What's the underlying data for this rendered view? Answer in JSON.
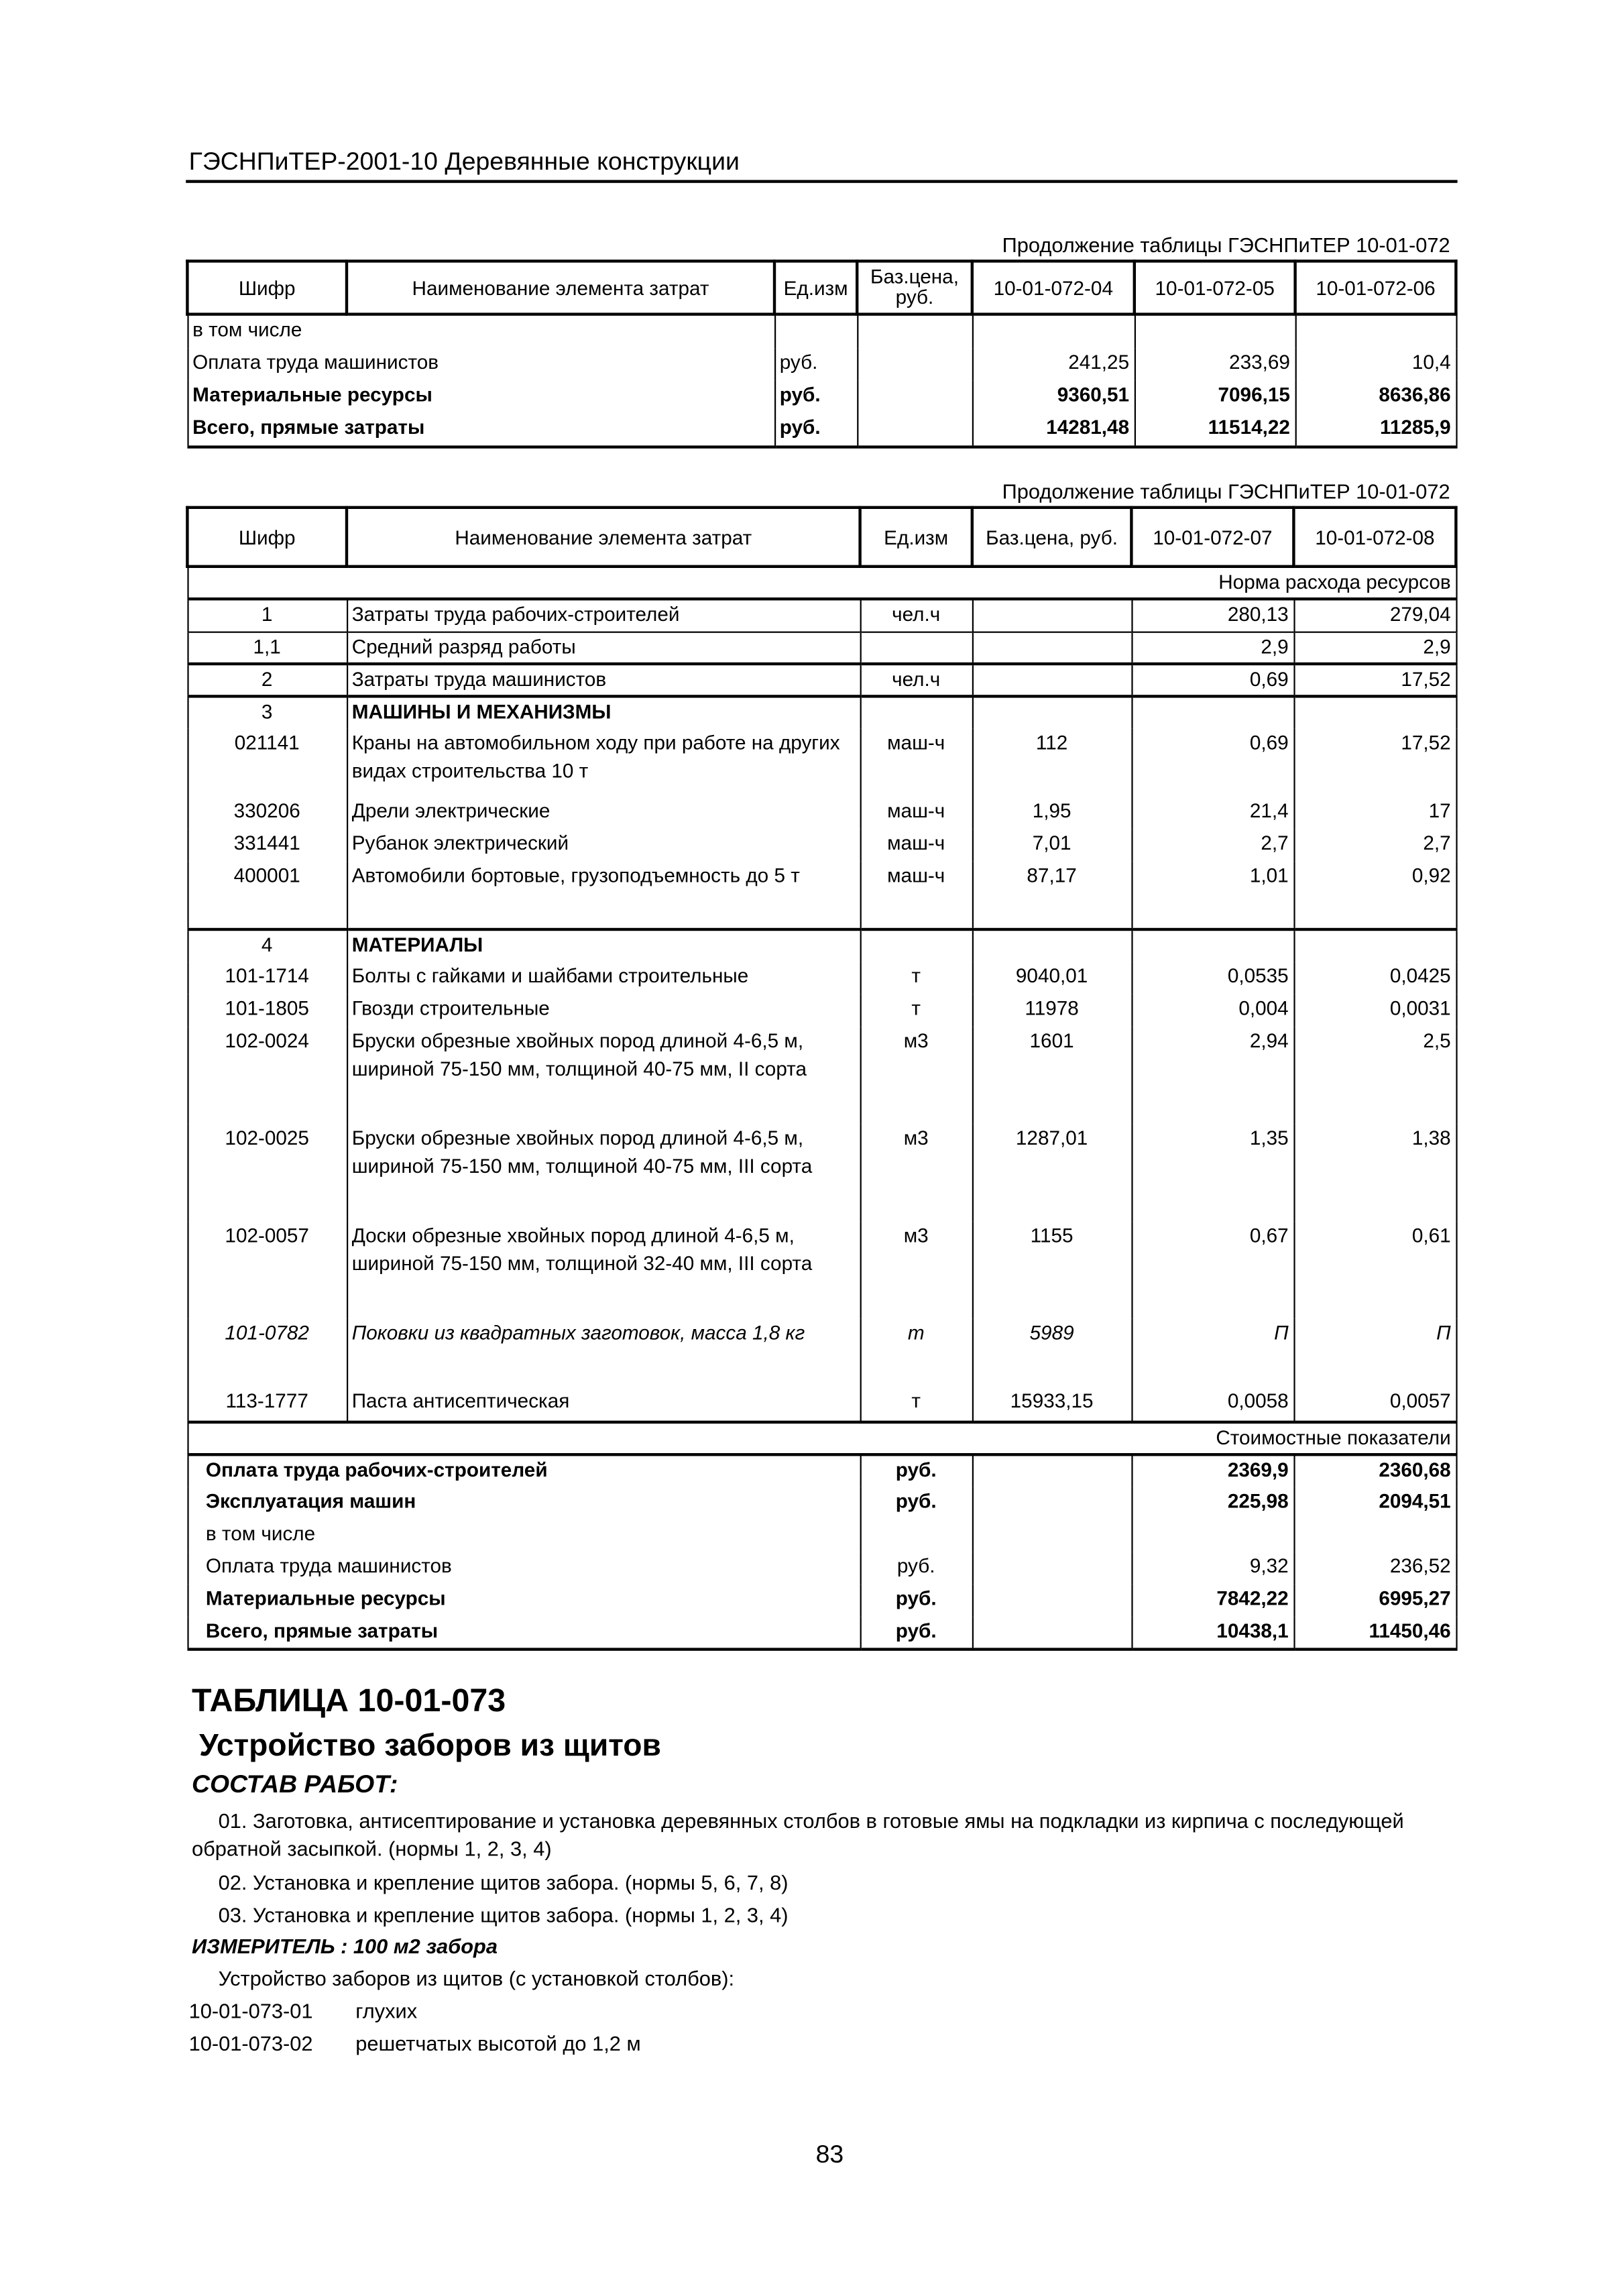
{
  "header": "ГЭСНПиТЕР-2001-10 Деревянные конструкции",
  "continuation": "Продолжение таблицы ГЭСНПиТЕР 10-01-072",
  "table1": {
    "headers": [
      "Шифр",
      "Наименование элемента затрат",
      "Ед.изм",
      "Баз.цена, руб.",
      "10-01-072-04",
      "10-01-072-05",
      "10-01-072-06"
    ],
    "rows": [
      {
        "name": "в том числе",
        "unit": "",
        "v": [
          "",
          "",
          ""
        ],
        "bold": false
      },
      {
        "name": "Оплата труда машинистов",
        "unit": "руб.",
        "v": [
          "241,25",
          "233,69",
          "10,4"
        ],
        "bold": false
      },
      {
        "name": "Материальные ресурсы",
        "unit": "руб.",
        "v": [
          "9360,51",
          "7096,15",
          "8636,86"
        ],
        "bold": true
      },
      {
        "name": "Всего, прямые затраты",
        "unit": "руб.",
        "v": [
          "14281,48",
          "11514,22",
          "11285,9"
        ],
        "bold": true
      }
    ]
  },
  "table2": {
    "headers": [
      "Шифр",
      "Наименование элемента затрат",
      "Ед.изм",
      "Баз.цена, руб.",
      "10-01-072-07",
      "10-01-072-08"
    ],
    "norm_label": "Норма расхода ресурсов",
    "rows": [
      {
        "code": "1",
        "name": "Затраты труда рабочих-строителей",
        "unit": "чел.ч",
        "price": "",
        "a": "280,13",
        "b": "279,04"
      },
      {
        "code": "1,1",
        "name": "Средний разряд работы",
        "unit": "",
        "price": "",
        "a": "2,9",
        "b": "2,9"
      },
      {
        "code": "2",
        "name": "Затраты труда машинистов",
        "unit": "чел.ч",
        "price": "",
        "a": "0,69",
        "b": "17,52"
      },
      {
        "code": "3",
        "name": "МАШИНЫ И МЕХАНИЗМЫ",
        "unit": "",
        "price": "",
        "a": "",
        "b": ""
      },
      {
        "code": "021141",
        "name": "Краны на автомобильном ходу при работе на других видах строительства 10 т",
        "unit": "маш-ч",
        "price": "112",
        "a": "0,69",
        "b": "17,52"
      },
      {
        "code": "330206",
        "name": "Дрели электрические",
        "unit": "маш-ч",
        "price": "1,95",
        "a": "21,4",
        "b": "17"
      },
      {
        "code": "331441",
        "name": "Рубанок электрический",
        "unit": "маш-ч",
        "price": "7,01",
        "a": "2,7",
        "b": "2,7"
      },
      {
        "code": "400001",
        "name": "Автомобили бортовые, грузоподъемность до 5 т",
        "unit": "маш-ч",
        "price": "87,17",
        "a": "1,01",
        "b": "0,92"
      },
      {
        "code": "4",
        "name": "МАТЕРИАЛЫ",
        "unit": "",
        "price": "",
        "a": "",
        "b": ""
      },
      {
        "code": "101-1714",
        "name": "Болты с гайками и шайбами строительные",
        "unit": "т",
        "price": "9040,01",
        "a": "0,0535",
        "b": "0,0425"
      },
      {
        "code": "101-1805",
        "name": "Гвозди строительные",
        "unit": "т",
        "price": "11978",
        "a": "0,004",
        "b": "0,0031"
      },
      {
        "code": "102-0024",
        "name": "Бруски обрезные хвойных пород длиной 4-6,5 м, шириной 75-150 мм, толщиной 40-75 мм, II сорта",
        "unit": "м3",
        "price": "1601",
        "a": "2,94",
        "b": "2,5"
      },
      {
        "code": "102-0025",
        "name": "Бруски обрезные хвойных пород длиной 4-6,5 м, шириной 75-150 мм, толщиной 40-75 мм, III сорта",
        "unit": "м3",
        "price": "1287,01",
        "a": "1,35",
        "b": "1,38"
      },
      {
        "code": "102-0057",
        "name": "Доски обрезные хвойных пород длиной 4-6,5 м, шириной 75-150 мм, толщиной 32-40 мм, III сорта",
        "unit": "м3",
        "price": "1155",
        "a": "0,67",
        "b": "0,61"
      },
      {
        "code": "101-0782",
        "name": "Поковки из квадратных заготовок, масса 1,8 кг",
        "unit": "т",
        "price": "5989",
        "a": "П",
        "b": "П"
      },
      {
        "code": "113-1777",
        "name": "Паста антисептическая",
        "unit": "т",
        "price": "15933,15",
        "a": "0,0058",
        "b": "0,0057"
      }
    ],
    "cost_label": "Стоимостные показатели",
    "costs": [
      {
        "name": "Оплата труда рабочих-строителей",
        "unit": "руб.",
        "a": "2369,9",
        "b": "2360,68"
      },
      {
        "name": "Эксплуатация машин",
        "unit": "руб.",
        "a": "225,98",
        "b": "2094,51"
      },
      {
        "name": "в том числе",
        "unit": "",
        "a": "",
        "b": ""
      },
      {
        "name": "Оплата труда машинистов",
        "unit": "руб.",
        "a": "9,32",
        "b": "236,52"
      },
      {
        "name": "Материальные ресурсы",
        "unit": "руб.",
        "a": "7842,22",
        "b": "6995,27"
      },
      {
        "name": "Всего, прямые затраты",
        "unit": "руб.",
        "a": "10438,1",
        "b": "11450,46"
      }
    ]
  },
  "section": {
    "table_title": "ТАБЛИЦА 10-01-073",
    "subtitle": "Устройство заборов из щитов",
    "works_label": "СОСТАВ РАБОТ:",
    "works": [
      "01. Заготовка, антисептирование и установка деревянных столбов в готовые ямы на подкладки из кирпича с последующей",
      "обратной засыпкой. (нормы 1, 2, 3, 4)",
      "02. Установка и крепление щитов забора. (нормы 5, 6, 7, 8)",
      "03. Установка и крепление щитов забора. (нормы 1, 2, 3, 4)"
    ],
    "measure": "ИЗМЕРИТЕЛЬ : 100 м2 забора",
    "intro": "Устройство заборов из щитов (с установкой столбов):",
    "items": [
      {
        "code": "10-01-073-01",
        "name": "глухих"
      },
      {
        "code": "10-01-073-02",
        "name": "решетчатых высотой до 1,2 м"
      }
    ]
  },
  "page_number": "83"
}
